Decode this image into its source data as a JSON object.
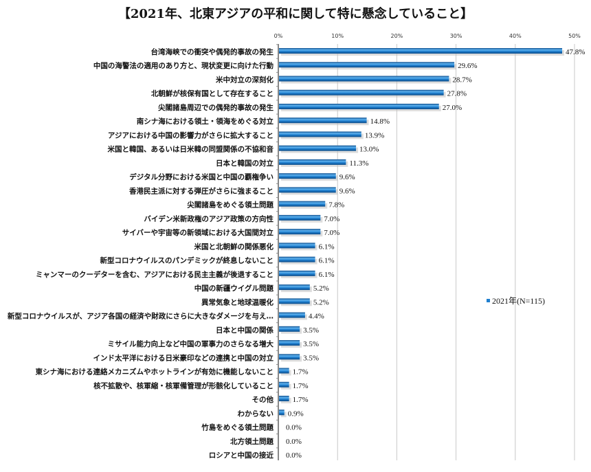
{
  "chart_data": {
    "type": "bar",
    "orientation": "horizontal",
    "title": "【2021年、北東アジアの平和に関して特に懸念していること】",
    "xlim": [
      0,
      50
    ],
    "x_ticks": [
      "0%",
      "10%",
      "20%",
      "30%",
      "40%",
      "50%"
    ],
    "x_axis_position": "top",
    "grid": true,
    "legend": {
      "position": "right",
      "entries": [
        "2021年(N=115)"
      ]
    },
    "bar_color": "#1f7fcf",
    "categories": [
      "台湾海峡での衝突や偶発的事故の発生",
      "中国の海警法の適用のあり方と、現状変更に向けた行動",
      "米中対立の深刻化",
      "北朝鮮が核保有国として存在すること",
      "尖閣諸島周辺での偶発的事故の発生",
      "南シナ海における領土・領海をめぐる対立",
      "アジアにおける中国の影響力がさらに拡大すること",
      "米国と韓国、あるいは日米韓の同盟関係の不協和音",
      "日本と韓国の対立",
      "デジタル分野における米国と中国の覇権争い",
      "香港民主派に対する弾圧がさらに強まること",
      "尖閣諸島をめぐる領土問題",
      "バイデン米新政権のアジア政策の方向性",
      "サイバーや宇宙等の新領域における大国間対立",
      "米国と北朝鮮の関係悪化",
      "新型コロナウイルスのパンデミックが終息しないこと",
      "ミャンマーのクーデターを含む、アジアにおける民主主義が後退すること",
      "中国の新疆ウイグル問題",
      "異常気象と地球温暖化",
      "新型コロナウイルスが、アジア各国の経済や財政にさらに大きなダメージを与え…",
      "日本と中国の関係",
      "ミサイル能力向上など中国の軍事力のさらなる増大",
      "インド太平洋における日米豪印などの連携と中国の対立",
      "東シナ海における連絡メカニズムやホットラインが有効に機能しないこと",
      "核不拡散や、核軍縮・核軍備管理が形骸化していること",
      "その他",
      "わからない",
      "竹島をめぐる領土問題",
      "北方領土問題",
      "ロシアと中国の接近"
    ],
    "series": [
      {
        "name": "2021年(N=115)",
        "values": [
          47.8,
          29.6,
          28.7,
          27.8,
          27.0,
          14.8,
          13.9,
          13.0,
          11.3,
          9.6,
          9.6,
          7.8,
          7.0,
          7.0,
          6.1,
          6.1,
          6.1,
          5.2,
          5.2,
          4.4,
          3.5,
          3.5,
          3.5,
          1.7,
          1.7,
          1.7,
          0.9,
          0.0,
          0.0,
          0.0
        ],
        "labels": [
          "47.8%",
          "29.6%",
          "28.7%",
          "27.8%",
          "27.0%",
          "14.8%",
          "13.9%",
          "13.0%",
          "11.3%",
          "9.6%",
          "9.6%",
          "7.8%",
          "7.0%",
          "7.0%",
          "6.1%",
          "6.1%",
          "6.1%",
          "5.2%",
          "5.2%",
          "4.4%",
          "3.5%",
          "3.5%",
          "3.5%",
          "1.7%",
          "1.7%",
          "1.7%",
          "0.9%",
          "0.0%",
          "0.0%",
          "0.0%"
        ]
      }
    ]
  }
}
